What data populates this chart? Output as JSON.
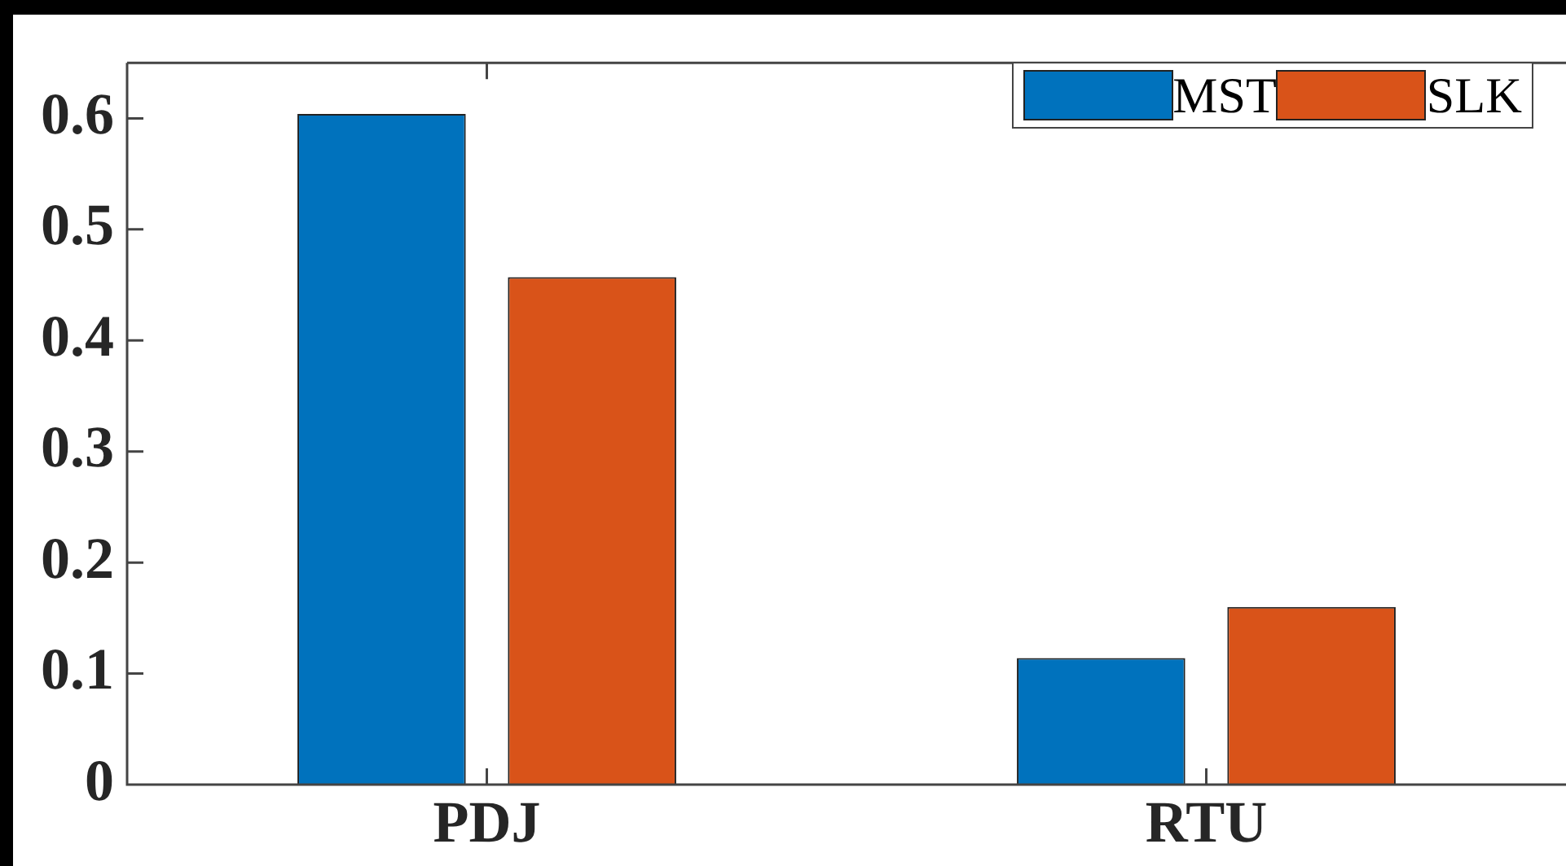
{
  "chart_data": {
    "type": "bar",
    "categories": [
      "PDJ",
      "RTU"
    ],
    "series": [
      {
        "name": "MST",
        "color": "#0072bd",
        "values": [
          0.604,
          0.114
        ]
      },
      {
        "name": "SLK",
        "color": "#d95319",
        "values": [
          0.457,
          0.16
        ]
      }
    ],
    "ylim": [
      0,
      0.65
    ],
    "yticks": [
      0,
      0.1,
      0.2,
      0.3,
      0.4,
      0.5,
      0.6
    ],
    "grid": false,
    "legend": "top right"
  }
}
